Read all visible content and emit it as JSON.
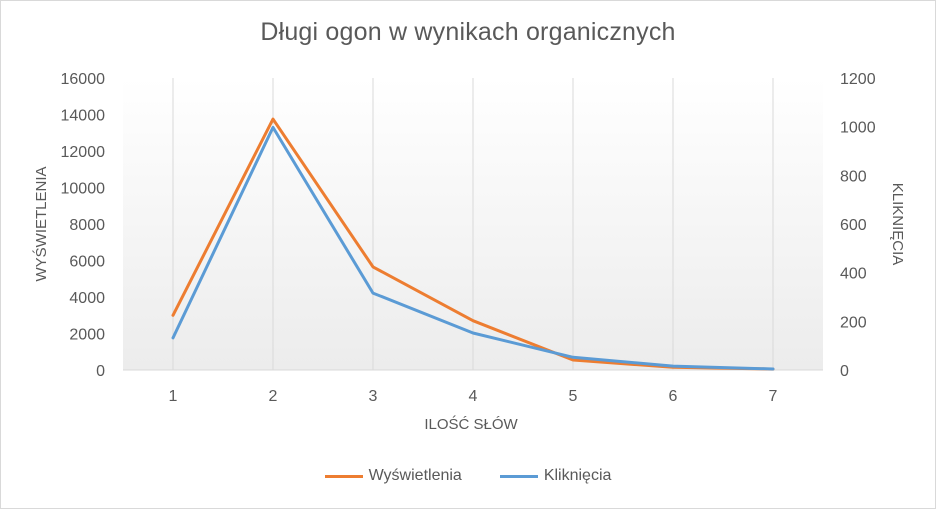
{
  "chart_data": {
    "type": "line",
    "title": "Długi ogon w wynikach organicznych",
    "xlabel": "ILOŚĆ SŁÓW",
    "ylabel_left": "WYŚWIETLENIA",
    "ylabel_right": "KLIKNIĘCIA",
    "categories": [
      "1",
      "2",
      "3",
      "4",
      "5",
      "6",
      "7"
    ],
    "y_left": {
      "min": 0,
      "max": 16000,
      "ticks": [
        "0",
        "2000",
        "4000",
        "6000",
        "8000",
        "10000",
        "12000",
        "14000",
        "16000"
      ]
    },
    "y_right": {
      "min": 0,
      "max": 1200,
      "ticks": [
        "0",
        "200",
        "400",
        "600",
        "800",
        "1000",
        "1200"
      ]
    },
    "series": [
      {
        "name": "Wyświetlenia",
        "axis": "left",
        "color": "#ed7d31",
        "values": [
          3000,
          13750,
          5650,
          2700,
          550,
          150,
          50
        ]
      },
      {
        "name": "Kliknięcia",
        "axis": "right",
        "color": "#5b9bd5",
        "values": [
          132,
          997,
          316,
          152,
          52,
          16,
          4
        ]
      }
    ],
    "grid": "vertical",
    "legend_position": "bottom"
  }
}
